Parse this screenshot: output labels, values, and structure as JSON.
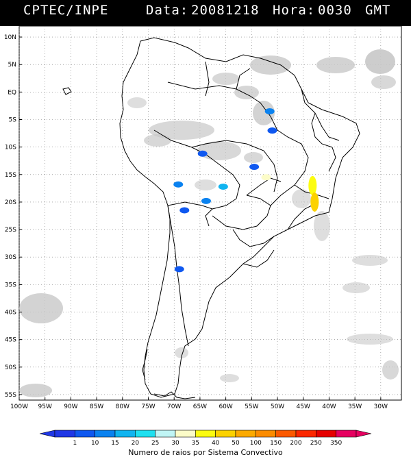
{
  "header": {
    "source": "CPTEC/INPE",
    "date_label": "Data:",
    "date_value": "20081218",
    "time_label": "Hora:",
    "time_value": "0030",
    "timezone": "GMT"
  },
  "map": {
    "lat_labels": [
      "10N",
      "5N",
      "EQ",
      "5S",
      "10S",
      "15S",
      "20S",
      "25S",
      "30S",
      "35S",
      "40S",
      "45S",
      "50S",
      "55S"
    ],
    "lat_values": [
      10,
      5,
      0,
      -5,
      -10,
      -15,
      -20,
      -25,
      -30,
      -35,
      -40,
      -45,
      -50,
      -55
    ],
    "lon_labels": [
      "100W",
      "95W",
      "90W",
      "85W",
      "80W",
      "75W",
      "70W",
      "65W",
      "60W",
      "55W",
      "50W",
      "45W",
      "40W",
      "35W",
      "30W"
    ],
    "lon_values": [
      -100,
      -95,
      -90,
      -85,
      -80,
      -75,
      -70,
      -65,
      -60,
      -55,
      -50,
      -45,
      -40,
      -35,
      -30
    ],
    "extent": {
      "lon_min": -100,
      "lon_max": -26,
      "lat_min": -56,
      "lat_max": 12
    },
    "grid": true,
    "cloud_color": "#c8c8c8",
    "coast_color": "#000000",
    "lightning_cells": [
      {
        "lon": -51.5,
        "lat": -3.5,
        "level": 2
      },
      {
        "lon": -51.0,
        "lat": -7.0,
        "level": 1
      },
      {
        "lon": -64.5,
        "lat": -11.2,
        "level": 1
      },
      {
        "lon": -54.5,
        "lat": -13.6,
        "level": 1
      },
      {
        "lon": -52.2,
        "lat": -15.5,
        "level": 6
      },
      {
        "lon": -69.2,
        "lat": -16.8,
        "level": 2
      },
      {
        "lon": -60.5,
        "lat": -17.2,
        "level": 3
      },
      {
        "lon": -63.8,
        "lat": -19.8,
        "level": 2
      },
      {
        "lon": -68.0,
        "lat": -21.5,
        "level": 1
      },
      {
        "lon": -43.2,
        "lat": -17.0,
        "level": 7
      },
      {
        "lon": -42.8,
        "lat": -20.0,
        "level": 8
      },
      {
        "lon": -69.0,
        "lat": -32.2,
        "level": 1
      }
    ]
  },
  "legend": {
    "labels": [
      "1",
      "10",
      "15",
      "20",
      "25",
      "30",
      "35",
      "40",
      "50",
      "100",
      "150",
      "200",
      "250",
      "350"
    ],
    "colors": [
      "#1f37e6",
      "#0f58f0",
      "#0a82f0",
      "#10b4f0",
      "#1ee0f0",
      "#c0f5f5",
      "#fcfcc8",
      "#fcfc10",
      "#fcd200",
      "#fcaa00",
      "#fc8c00",
      "#fc5a00",
      "#fc2800",
      "#e60000",
      "#e60060"
    ],
    "title": "Numero de raios por Sistema Convectivo"
  }
}
